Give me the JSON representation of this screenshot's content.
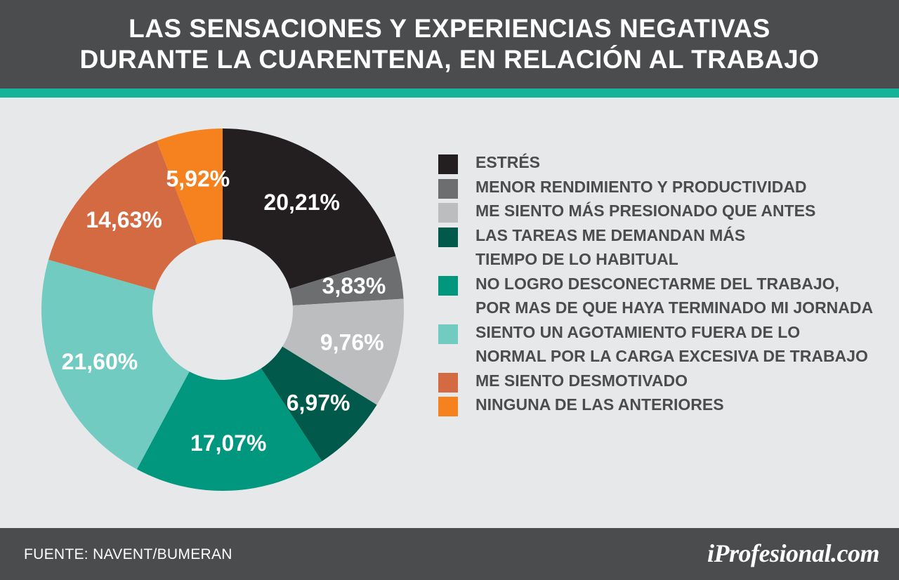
{
  "header": {
    "title_line1": "LAS SENSACIONES Y EXPERIENCIAS NEGATIVAS",
    "title_line2": "DURANTE LA CUARENTENA, EN RELACIÓN AL TRABAJO"
  },
  "chart_data": {
    "type": "pie",
    "donut": true,
    "legend_placement": "right",
    "categories": [
      "ESTRÉS",
      "MENOR RENDIMIENTO Y PRODUCTIVIDAD",
      "ME SIENTO MÁS PRESIONADO QUE ANTES",
      "LAS TAREAS ME DEMANDAN MÁS TIEMPO DE LO HABITUAL",
      "NO LOGRO DESCONECTARME DEL TRABAJO, POR MAS DE QUE HAYA TERMINADO MI JORNADA",
      "SIENTO UN AGOTAMIENTO FUERA DE LO NORMAL POR LA CARGA EXCESIVA DE TRABAJO",
      "ME SIENTO DESMOTIVADO",
      "NINGUNA DE LAS ANTERIORES"
    ],
    "legend_lines": [
      [
        "ESTRÉS"
      ],
      [
        "MENOR RENDIMIENTO Y PRODUCTIVIDAD"
      ],
      [
        "ME SIENTO MÁS PRESIONADO QUE ANTES"
      ],
      [
        "LAS TAREAS ME DEMANDAN MÁS",
        "TIEMPO DE LO HABITUAL"
      ],
      [
        "NO LOGRO DESCONECTARME DEL TRABAJO,",
        "POR MAS DE QUE HAYA TERMINADO MI JORNADA"
      ],
      [
        "SIENTO UN AGOTAMIENTO FUERA DE LO",
        "NORMAL POR LA CARGA EXCESIVA DE TRABAJO"
      ],
      [
        "ME SIENTO DESMOTIVADO"
      ],
      [
        "NINGUNA DE LAS ANTERIORES"
      ]
    ],
    "values": [
      20.21,
      3.83,
      9.76,
      6.97,
      17.07,
      21.6,
      14.63,
      5.92
    ],
    "value_labels": [
      "20,21%",
      "3,83%",
      "9,76%",
      "6,97%",
      "17,07%",
      "21,60%",
      "14,63%",
      "5,92%"
    ],
    "colors": [
      "#231f20",
      "#6d6e70",
      "#bcbdbf",
      "#00594a",
      "#00977e",
      "#72cbc1",
      "#d46a42",
      "#f5821f"
    ]
  },
  "footer": {
    "source": "FUENTE:  NAVENT/BUMERAN",
    "brand": "iProfesional.com"
  }
}
